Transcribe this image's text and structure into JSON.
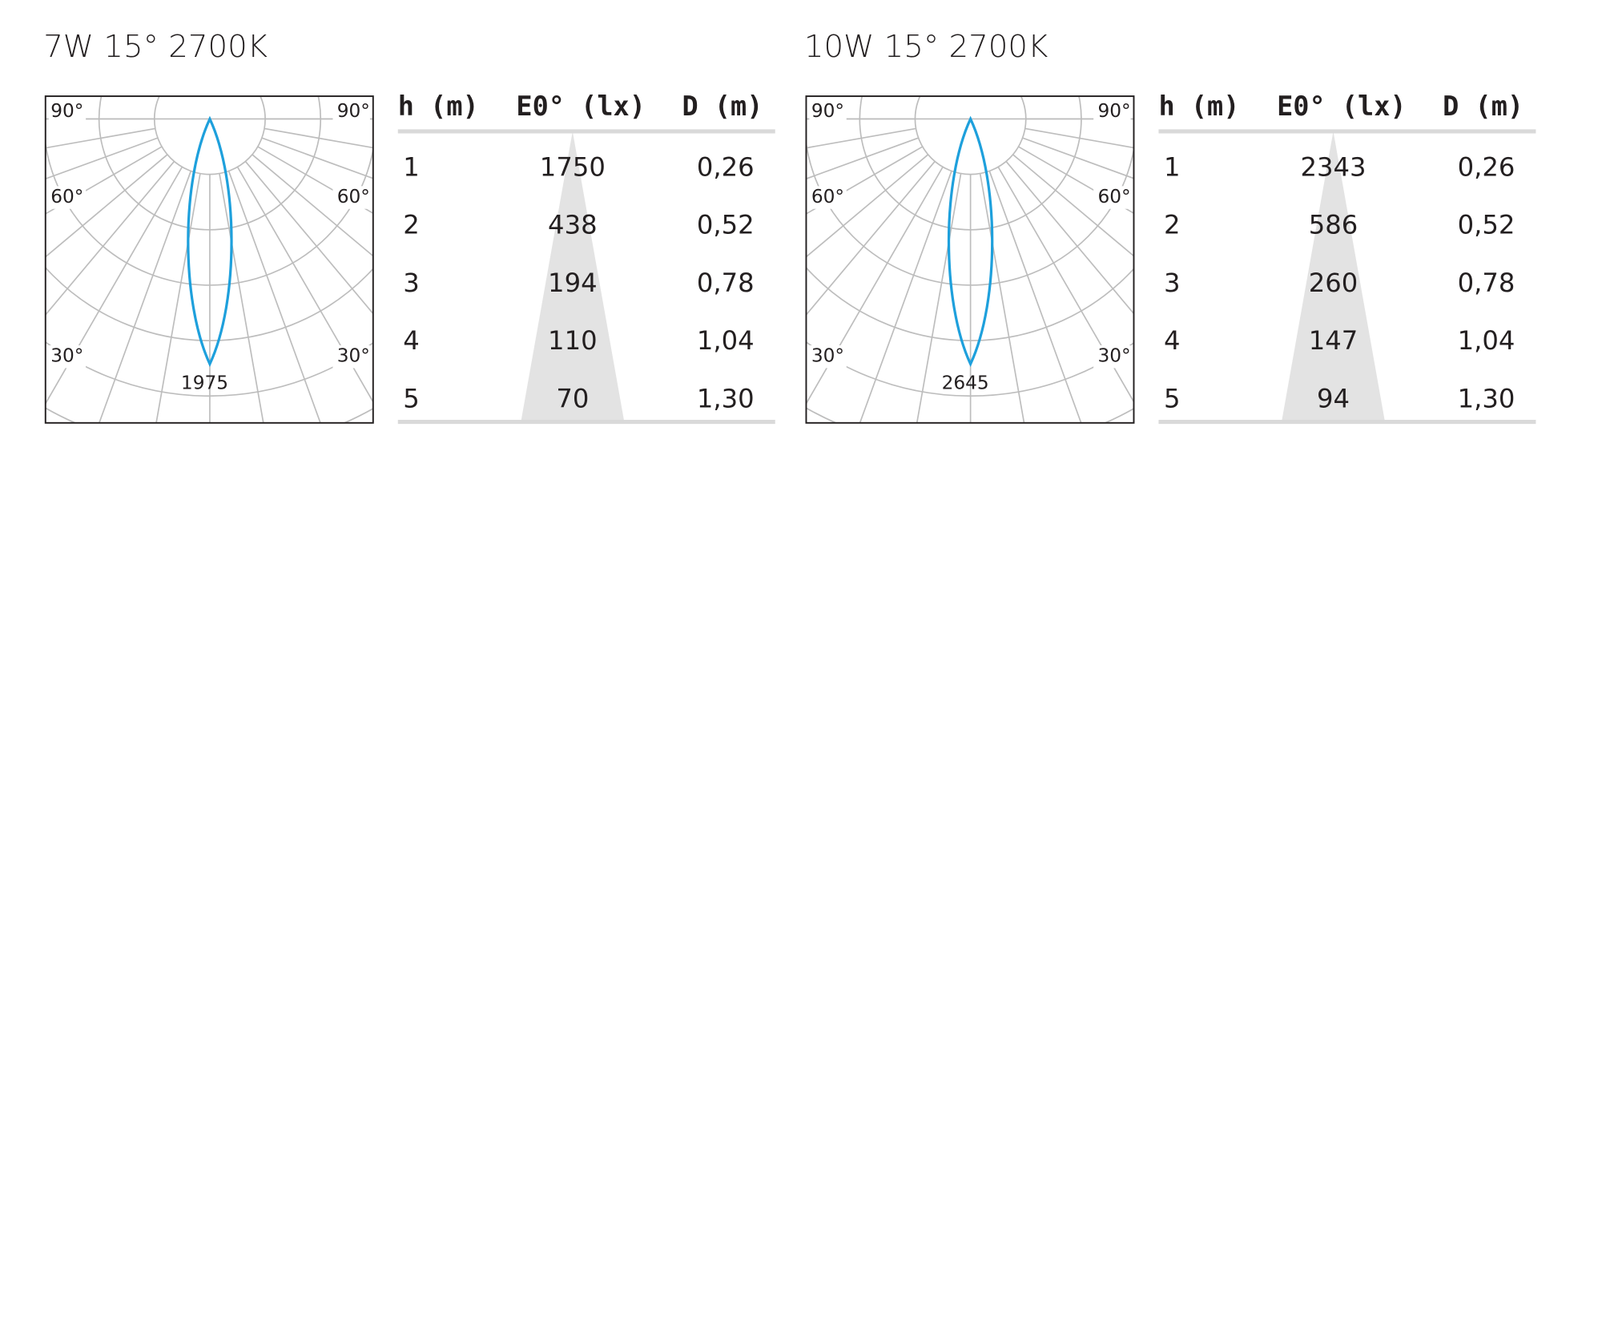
{
  "panels": [
    {
      "title": "7W 15°   2700K",
      "diagram": {
        "angle_labels": [
          "90°",
          "60°",
          "30°"
        ],
        "peak": "1975"
      },
      "table": {
        "headers": [
          "h (m)",
          "E0° (lx)",
          "D (m)"
        ],
        "rows": [
          [
            "1",
            "1750",
            "0,26"
          ],
          [
            "2",
            "438",
            "0,52"
          ],
          [
            "3",
            "194",
            "0,78"
          ],
          [
            "4",
            "110",
            "1,04"
          ],
          [
            "5",
            "70",
            "1,30"
          ]
        ]
      }
    },
    {
      "title": "10W 15°   2700K",
      "diagram": {
        "angle_labels": [
          "90°",
          "60°",
          "30°"
        ],
        "peak": "2645"
      },
      "table": {
        "headers": [
          "h (m)",
          "E0° (lx)",
          "D (m)"
        ],
        "rows": [
          [
            "1",
            "2343",
            "0,26"
          ],
          [
            "2",
            "586",
            "0,52"
          ],
          [
            "3",
            "260",
            "0,78"
          ],
          [
            "4",
            "147",
            "1,04"
          ],
          [
            "5",
            "94",
            "1,30"
          ]
        ]
      }
    }
  ]
}
